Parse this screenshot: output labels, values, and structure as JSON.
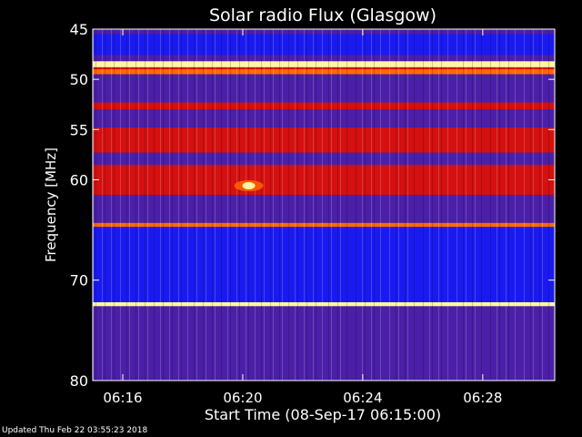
{
  "footer": {
    "updated": "Updated Thu Feb 22 03:55:23 2018"
  },
  "chart_data": {
    "type": "heatmap",
    "title": "Solar radio Flux (Glasgow)",
    "xlabel": "Start Time (08-Sep-17 06:15:00)",
    "ylabel": "Frequency [MHz]",
    "x_unit": "time (min after 06:15:00)",
    "xlim": [
      0,
      15.4
    ],
    "ylim": [
      80,
      45
    ],
    "y_inverted": true,
    "x_ticks": [
      {
        "value": 1,
        "label": "06:16"
      },
      {
        "value": 5,
        "label": "06:20"
      },
      {
        "value": 9,
        "label": "06:24"
      },
      {
        "value": 13,
        "label": "06:28"
      }
    ],
    "y_ticks": [
      {
        "value": 45,
        "label": "45"
      },
      {
        "value": 50,
        "label": "50"
      },
      {
        "value": 55,
        "label": "55"
      },
      {
        "value": 60,
        "label": "60"
      },
      {
        "value": 70,
        "label": "70"
      },
      {
        "value": 80,
        "label": "80"
      }
    ],
    "colors": {
      "background": "#000000",
      "blue": "#1a1af0",
      "purple": "#4b1fa8",
      "red": "#d41010",
      "orange": "#ff6a00",
      "yellow": "#fff5a0"
    },
    "bands": [
      {
        "from": 45.5,
        "to": 47.6,
        "level": "blue"
      },
      {
        "from": 47.6,
        "to": 48.2,
        "level": "purple"
      },
      {
        "from": 48.2,
        "to": 48.8,
        "level": "yellow"
      },
      {
        "from": 48.8,
        "to": 49.0,
        "level": "red"
      },
      {
        "from": 49.0,
        "to": 49.5,
        "level": "orange"
      },
      {
        "from": 49.5,
        "to": 52.3,
        "level": "purple"
      },
      {
        "from": 52.3,
        "to": 53.0,
        "level": "red"
      },
      {
        "from": 53.0,
        "to": 54.8,
        "level": "purple"
      },
      {
        "from": 54.8,
        "to": 57.3,
        "level": "red"
      },
      {
        "from": 57.3,
        "to": 58.5,
        "level": "purple"
      },
      {
        "from": 58.5,
        "to": 61.5,
        "level": "red"
      },
      {
        "from": 61.5,
        "to": 64.3,
        "level": "purple"
      },
      {
        "from": 64.3,
        "to": 64.7,
        "level": "orange"
      },
      {
        "from": 64.7,
        "to": 72.2,
        "level": "blue"
      },
      {
        "from": 72.2,
        "to": 72.6,
        "level": "yellow"
      },
      {
        "from": 72.6,
        "to": 80.0,
        "level": "purple"
      }
    ],
    "events": [
      {
        "time": 5.2,
        "freq": 60.6,
        "label": "burst"
      }
    ]
  }
}
